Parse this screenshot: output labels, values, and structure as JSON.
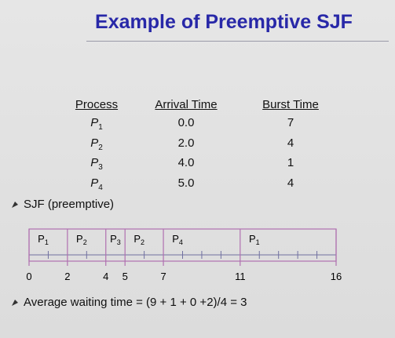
{
  "title": "Example of Preemptive SJF",
  "table": {
    "headers": [
      "Process",
      "Arrival Time",
      "Burst Time"
    ],
    "rows": [
      {
        "process": {
          "name": "P",
          "sub": "1"
        },
        "arrival": "0.0",
        "burst": "7"
      },
      {
        "process": {
          "name": "P",
          "sub": "2"
        },
        "arrival": "2.0",
        "burst": "4"
      },
      {
        "process": {
          "name": "P",
          "sub": "3"
        },
        "arrival": "4.0",
        "burst": "1"
      },
      {
        "process": {
          "name": "P",
          "sub": "4"
        },
        "arrival": "5.0",
        "burst": "4"
      }
    ]
  },
  "bullets": [
    "SJF (preemptive)",
    "Average waiting time = (9 + 1 + 0 +2)/4 = 3"
  ],
  "gantt": {
    "times": [
      0,
      2,
      4,
      5,
      7,
      11,
      16
    ],
    "segments": [
      {
        "name": "P",
        "sub": "1"
      },
      {
        "name": "P",
        "sub": "2"
      },
      {
        "name": "P",
        "sub": "3"
      },
      {
        "name": "P",
        "sub": "2"
      },
      {
        "name": "P",
        "sub": "4"
      },
      {
        "name": "P",
        "sub": "1"
      }
    ]
  }
}
